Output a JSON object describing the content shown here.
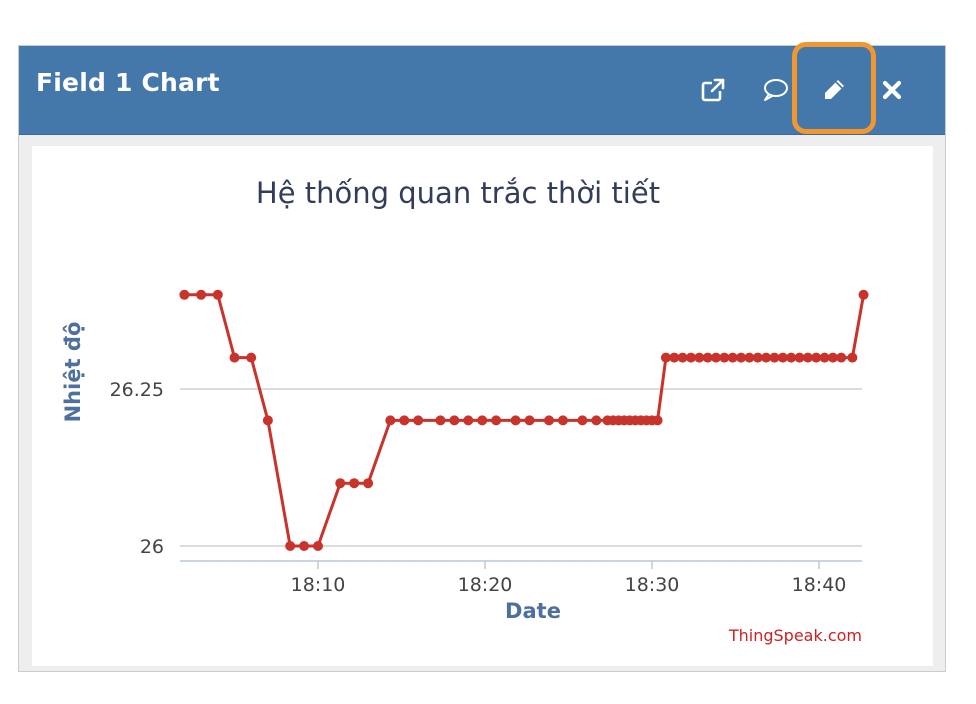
{
  "widget": {
    "title": "Field 1 Chart",
    "icons": [
      "external-link-icon",
      "comment-icon",
      "pencil-icon",
      "close-icon"
    ]
  },
  "colors": {
    "header": "#4477aa",
    "highlight": "#f0982f",
    "series": "#c8332b",
    "axis_label": "#4f6f9e",
    "credit": "#cc2222"
  },
  "chart_data": {
    "type": "line",
    "title": "Hệ thống quan trắc thời tiết",
    "xlabel": "Date",
    "ylabel": "Nhiệt độ",
    "x_ticks": [
      "18:10",
      "18:20",
      "18:30",
      "18:40"
    ],
    "y_ticks": [
      "26",
      "26.25"
    ],
    "ylim": [
      25.98,
      26.4
    ],
    "credit": "ThingSpeak.com",
    "grid": "horizontal",
    "series": [
      {
        "points": [
          [
            "18:02:00",
            26.4
          ],
          [
            "18:03:00",
            26.4
          ],
          [
            "18:04:00",
            26.4
          ],
          [
            "18:05:00",
            26.3
          ],
          [
            "18:06:00",
            26.3
          ],
          [
            "18:07:00",
            26.2
          ],
          [
            "18:08:20",
            26.0
          ],
          [
            "18:09:10",
            26.0
          ],
          [
            "18:10:00",
            26.0
          ],
          [
            "18:11:20",
            26.1
          ],
          [
            "18:12:10",
            26.1
          ],
          [
            "18:13:00",
            26.1
          ],
          [
            "18:14:20",
            26.2
          ],
          [
            "18:15:10",
            26.2
          ],
          [
            "18:16:00",
            26.2
          ],
          [
            "18:17:20",
            26.2
          ],
          [
            "18:18:10",
            26.2
          ],
          [
            "18:19:00",
            26.2
          ],
          [
            "18:19:50",
            26.2
          ],
          [
            "18:20:40",
            26.2
          ],
          [
            "18:21:50",
            26.2
          ],
          [
            "18:22:40",
            26.2
          ],
          [
            "18:23:50",
            26.2
          ],
          [
            "18:24:40",
            26.2
          ],
          [
            "18:25:50",
            26.2
          ],
          [
            "18:26:40",
            26.2
          ],
          [
            "18:27:20",
            26.2
          ],
          [
            "18:27:40",
            26.2
          ],
          [
            "18:28:00",
            26.2
          ],
          [
            "18:28:20",
            26.2
          ],
          [
            "18:28:40",
            26.2
          ],
          [
            "18:29:00",
            26.2
          ],
          [
            "18:29:20",
            26.2
          ],
          [
            "18:29:40",
            26.2
          ],
          [
            "18:30:00",
            26.2
          ],
          [
            "18:30:20",
            26.2
          ],
          [
            "18:30:50",
            26.3
          ],
          [
            "18:31:20",
            26.3
          ],
          [
            "18:31:50",
            26.3
          ],
          [
            "18:32:20",
            26.3
          ],
          [
            "18:32:50",
            26.3
          ],
          [
            "18:33:20",
            26.3
          ],
          [
            "18:33:50",
            26.3
          ],
          [
            "18:34:20",
            26.3
          ],
          [
            "18:34:50",
            26.3
          ],
          [
            "18:35:20",
            26.3
          ],
          [
            "18:35:50",
            26.3
          ],
          [
            "18:36:20",
            26.3
          ],
          [
            "18:36:50",
            26.3
          ],
          [
            "18:37:20",
            26.3
          ],
          [
            "18:37:50",
            26.3
          ],
          [
            "18:38:20",
            26.3
          ],
          [
            "18:38:50",
            26.3
          ],
          [
            "18:39:20",
            26.3
          ],
          [
            "18:39:50",
            26.3
          ],
          [
            "18:40:20",
            26.3
          ],
          [
            "18:40:50",
            26.3
          ],
          [
            "18:41:20",
            26.3
          ],
          [
            "18:42:00",
            26.3
          ],
          [
            "18:42:40",
            26.4
          ]
        ]
      }
    ]
  }
}
